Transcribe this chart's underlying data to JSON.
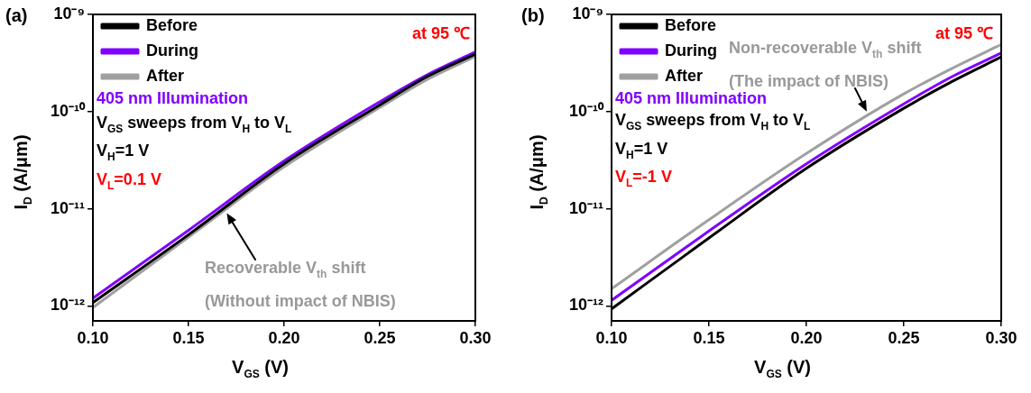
{
  "chart_data": [
    {
      "type": "line",
      "title": "(a)",
      "xlabel": "V$_{GS}$ (V)",
      "ylabel": "I$_{D}$ (A/μm)",
      "log": "y",
      "legend": "top left",
      "x": [
        0.1,
        0.15,
        0.2,
        0.25,
        0.275,
        0.3
      ],
      "series": [
        {
          "name": "Before",
          "color": "#000000",
          "values": [
            1.08e-12,
            5.4e-12,
            2.9e-11,
            1.17e-10,
            2.3e-10,
            3.9e-10
          ]
        },
        {
          "name": "During",
          "color": "#7f00ff",
          "values": [
            1.2e-12,
            6e-12,
            3.1e-11,
            1.26e-10,
            2.4e-10,
            4.1e-10
          ]
        },
        {
          "name": "After",
          "color": "#a0a0a0",
          "values": [
            9.6e-13,
            5.1e-12,
            2.7e-11,
            1.1e-10,
            2.15e-10,
            3.7e-10
          ]
        }
      ],
      "xlim": [
        0.1,
        0.3
      ],
      "xticks": [
        {
          "value": 0.1,
          "label": "0.10"
        },
        {
          "value": 0.15,
          "label": "0.15"
        },
        {
          "value": 0.2,
          "label": "0.20"
        },
        {
          "value": 0.25,
          "label": "0.25"
        },
        {
          "value": 0.3,
          "label": "0.30"
        }
      ],
      "ylim": [
        7e-13,
        1e-09
      ],
      "yticks": [
        {
          "value": 1e-12,
          "label": "10⁻¹²"
        },
        {
          "value": 1e-11,
          "label": "10⁻¹¹"
        },
        {
          "value": 1e-10,
          "label": "10⁻¹⁰"
        },
        {
          "value": 1e-09,
          "label": "10⁻⁹"
        }
      ],
      "annotations": [
        "at 95 ℃",
        "405 nm",
        "Illumination",
        "V$_{GS}$ sweeps from V$_{H}$ to V$_{L}$",
        "V$_{H}$=1 V",
        "V$_{L}$=0.1 V",
        {
          "text": "Recoverable V$_{th}$ shift\n(Without impact of NBIS)",
          "x": 0.17,
          "y": 9e-12
        }
      ]
    },
    {
      "type": "line",
      "title": "(b)",
      "xlabel": "V$_{GS}$ (V)",
      "ylabel": "I$_{D}$ (A/μm)",
      "log": "y",
      "legend": "top left",
      "x": [
        0.1,
        0.15,
        0.2,
        0.25,
        0.275,
        0.3
      ],
      "series": [
        {
          "name": "Before",
          "color": "#000000",
          "values": [
            9.3e-13,
            5e-12,
            2.6e-11,
            1.08e-10,
            2.05e-10,
            3.65e-10
          ]
        },
        {
          "name": "During",
          "color": "#7f00ff",
          "values": [
            1.14e-12,
            5.9e-12,
            2.9e-11,
            1.2e-10,
            2.3e-10,
            4e-10
          ]
        },
        {
          "name": "After",
          "color": "#a0a0a0",
          "values": [
            1.5e-12,
            7.7e-12,
            3.7e-11,
            1.52e-10,
            2.8e-10,
            4.9e-10
          ]
        }
      ],
      "xlim": [
        0.1,
        0.3
      ],
      "xticks": [
        {
          "value": 0.1,
          "label": "0.10"
        },
        {
          "value": 0.15,
          "label": "0.15"
        },
        {
          "value": 0.2,
          "label": "0.20"
        },
        {
          "value": 0.25,
          "label": "0.25"
        },
        {
          "value": 0.3,
          "label": "0.30"
        }
      ],
      "ylim": [
        7e-13,
        1e-09
      ],
      "yticks": [
        {
          "value": 1e-12,
          "label": "10⁻¹²"
        },
        {
          "value": 1e-11,
          "label": "10⁻¹¹"
        },
        {
          "value": 1e-10,
          "label": "10⁻¹⁰"
        },
        {
          "value": 1e-09,
          "label": "10⁻⁹"
        }
      ],
      "annotations": [
        "at 95 ℃",
        "405 nm",
        "Illumination",
        "V$_{GS}$ sweeps from V$_{H}$ to V$_{L}$",
        "V$_{H}$=1 V",
        "V$_{L}$=-1 V",
        {
          "text": "Non-recoverable V$_{th}$ shift\n(The impact of NBIS)",
          "x": 0.231,
          "y": 1e-10
        }
      ]
    }
  ]
}
